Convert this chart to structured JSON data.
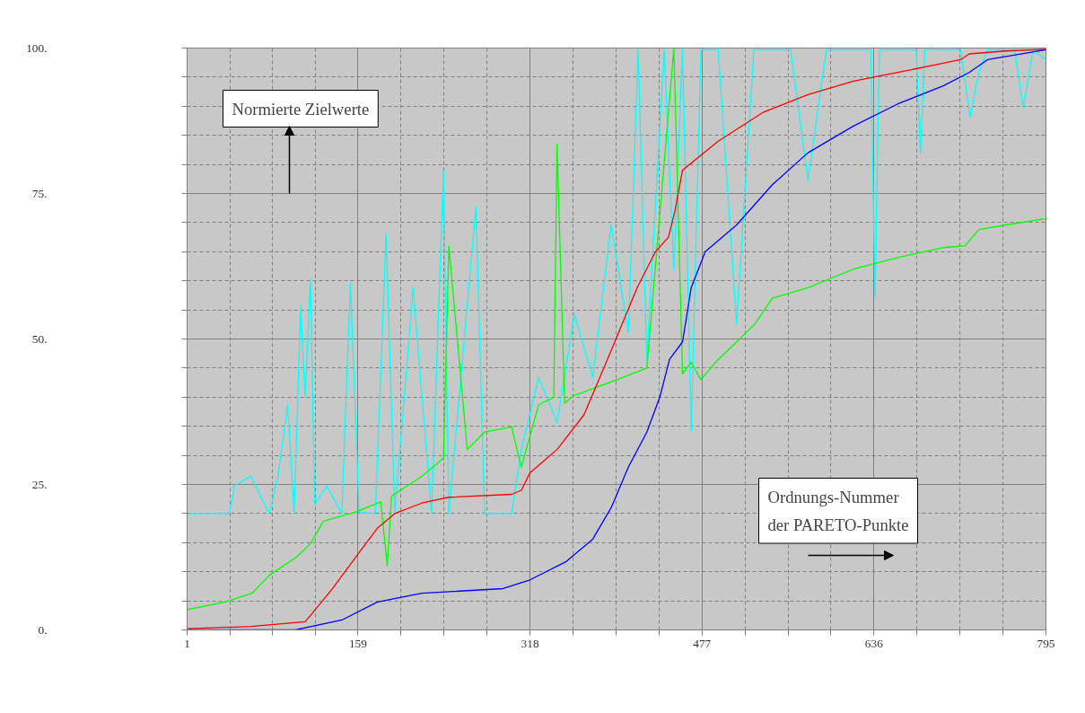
{
  "chart_data": {
    "type": "line",
    "annotations": [
      "Normierte Zielwerte",
      "Ordnungs-Nummer\nder PARETO-Punkte"
    ],
    "xlim": [
      1,
      795
    ],
    "ylim": [
      0,
      100
    ],
    "xticks": [
      1,
      {
        "value": 40.5,
        "label": null
      },
      {
        "value": 80,
        "label": null
      },
      {
        "value": 119.5,
        "label": null
      },
      159,
      {
        "value": 198.75,
        "label": null
      },
      {
        "value": 238.5,
        "label": null
      },
      {
        "value": 278.25,
        "label": null
      },
      318,
      {
        "value": 357.75,
        "label": null
      },
      {
        "value": 397.5,
        "label": null
      },
      {
        "value": 437.25,
        "label": null
      },
      477,
      {
        "value": 516.75,
        "label": null
      },
      {
        "value": 556.5,
        "label": null
      },
      {
        "value": 596.25,
        "label": null
      },
      636,
      {
        "value": 675.75,
        "label": null
      },
      {
        "value": 715.5,
        "label": null
      },
      {
        "value": 755.25,
        "label": null
      },
      795
    ],
    "yticks": [
      {
        "value": 0,
        "label": "0."
      },
      {
        "value": 5,
        "label": null
      },
      {
        "value": 10,
        "label": null
      },
      {
        "value": 15,
        "label": null
      },
      {
        "value": 20,
        "label": null
      },
      {
        "value": 25,
        "label": "25."
      },
      {
        "value": 30,
        "label": null
      },
      {
        "value": 35,
        "label": null
      },
      {
        "value": 40,
        "label": null
      },
      {
        "value": 45,
        "label": null
      },
      {
        "value": 50,
        "label": "50."
      },
      {
        "value": 55,
        "label": null
      },
      {
        "value": 60,
        "label": null
      },
      {
        "value": 65,
        "label": null
      },
      {
        "value": 70,
        "label": null
      },
      {
        "value": 75,
        "label": "75."
      },
      {
        "value": 80,
        "label": null
      },
      {
        "value": 85,
        "label": null
      },
      {
        "value": 90,
        "label": null
      },
      {
        "value": 95,
        "label": null
      },
      {
        "value": 100,
        "label": "100."
      }
    ],
    "grid": true,
    "marker": "none",
    "line_style": "solid",
    "series": [
      {
        "color": "#00ffff",
        "x": [
          1,
          40,
          45,
          60,
          77,
          85,
          94,
          100,
          106,
          110,
          115,
          119,
          130,
          144,
          152,
          160,
          175,
          185,
          193,
          210,
          227,
          238,
          243,
          268,
          276,
          301,
          310,
          326,
          343,
          359,
          376,
          393,
          409,
          418,
          426,
          442,
          451,
          459,
          467,
          476,
          492,
          509,
          525,
          542,
          559,
          575,
          592,
          633,
          637,
          641,
          675,
          679,
          683,
          716,
          725,
          733,
          741,
          766,
          774,
          783,
          795
        ],
        "values": [
          20,
          20,
          24.8,
          26.4,
          20,
          26.4,
          38.7,
          20,
          55.7,
          40,
          60.3,
          21.6,
          24.8,
          20,
          59.6,
          20.2,
          20,
          68,
          20.2,
          58.8,
          20,
          78.9,
          20,
          72.7,
          20,
          20,
          31,
          43.4,
          35.6,
          54.2,
          43.4,
          69.6,
          51.1,
          99.7,
          46.5,
          99.7,
          61.9,
          99.7,
          34.1,
          99.7,
          99.7,
          52.6,
          99.7,
          99.7,
          99.7,
          77.3,
          99.7,
          99.7,
          57.3,
          99.7,
          99.7,
          81.9,
          99.7,
          99.7,
          88.1,
          95.8,
          99.7,
          99.7,
          89.7,
          99.7,
          98
        ]
      },
      {
        "color": "#00ff00",
        "x": [
          1,
          36,
          61,
          77,
          102,
          115,
          127,
          156,
          180,
          186,
          190,
          218,
          238,
          243,
          260,
          276,
          301,
          310,
          326,
          340,
          343,
          350,
          359,
          393,
          426,
          451,
          459,
          467,
          476,
          492,
          509,
          526,
          542,
          575,
          617,
          658,
          700,
          720,
          733,
          758,
          795
        ],
        "values": [
          3.5,
          4.8,
          6.3,
          9.4,
          12.5,
          14.8,
          18.7,
          20.2,
          22,
          11,
          23,
          26.4,
          29.5,
          66,
          31,
          34,
          34.9,
          28,
          38.7,
          40,
          83.5,
          39,
          40.3,
          42.6,
          45,
          100,
          44,
          46,
          43,
          46.5,
          49.5,
          52.6,
          57,
          58.8,
          62,
          64,
          65.7,
          66,
          68.8,
          69.6,
          70.7
        ]
      },
      {
        "color": "#ff0000",
        "x": [
          1,
          60,
          110,
          115,
          135,
          160,
          177,
          193,
          218,
          243,
          301,
          310,
          318,
          343,
          368,
          393,
          417,
          434,
          446,
          452,
          459,
          492,
          534,
          575,
          617,
          658,
          700,
          716,
          724,
          758,
          795
        ],
        "values": [
          0.2,
          0.6,
          1.4,
          2.5,
          7,
          13.3,
          17.5,
          20,
          21.8,
          22.8,
          23.3,
          24,
          27,
          31,
          37,
          48,
          58.8,
          65,
          67.5,
          72,
          79,
          84,
          89,
          92,
          94.3,
          95.8,
          97.4,
          98,
          99,
          99.5,
          99.8
        ]
      },
      {
        "color": "#0000ff",
        "x": [
          1,
          101,
          144,
          177,
          218,
          293,
          318,
          351,
          376,
          393,
          409,
          426,
          438,
          447,
          459,
          467,
          480,
          509,
          542,
          575,
          617,
          658,
          700,
          724,
          741,
          795
        ],
        "values": [
          0,
          0,
          1.7,
          4.8,
          6.3,
          7.1,
          8.6,
          11.7,
          15.6,
          21,
          28,
          34,
          40,
          46.5,
          49.5,
          58.8,
          65,
          69.6,
          76.5,
          82,
          86.6,
          90.4,
          93.5,
          95.8,
          98,
          99.7
        ]
      }
    ]
  }
}
